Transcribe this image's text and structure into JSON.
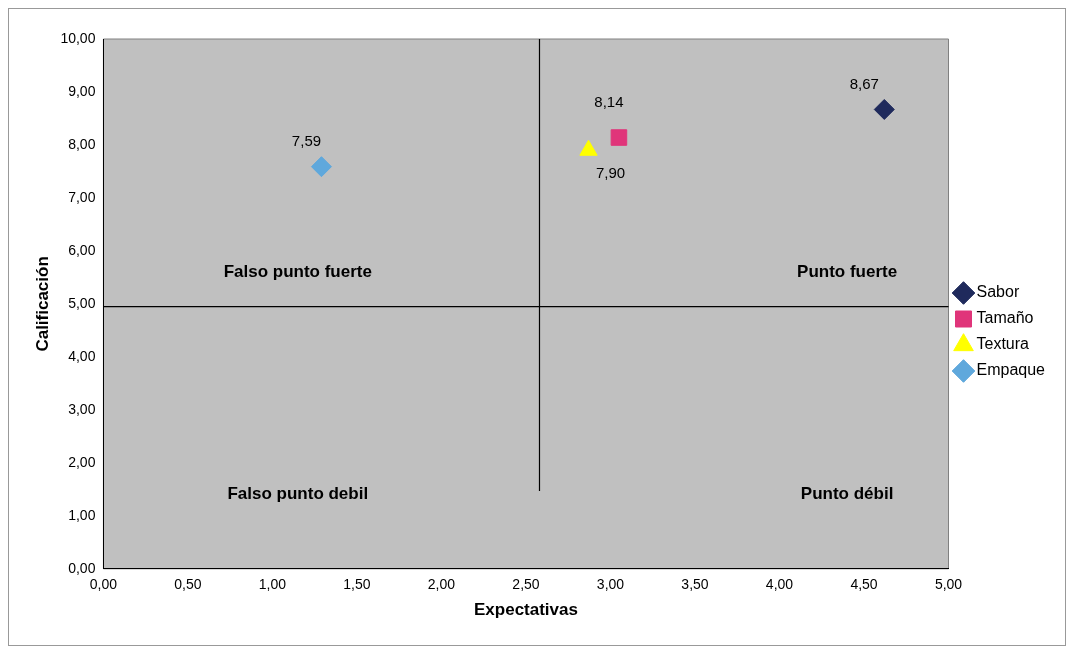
{
  "chart_data": {
    "type": "scatter",
    "xlabel": "Expectativas",
    "ylabel": "Calificación",
    "xlim": [
      0,
      5
    ],
    "xticks": [
      {
        "value": 0,
        "label": "0,00"
      },
      {
        "value": 0.5,
        "label": "0,50"
      },
      {
        "value": 1,
        "label": "1,00"
      },
      {
        "value": 1.5,
        "label": "1,50"
      },
      {
        "value": 2,
        "label": "2,00"
      },
      {
        "value": 2.5,
        "label": "2,50"
      },
      {
        "value": 3,
        "label": "3,00"
      },
      {
        "value": 3.5,
        "label": "3,50"
      },
      {
        "value": 4,
        "label": "4,00"
      },
      {
        "value": 4.5,
        "label": "4,50"
      },
      {
        "value": 5,
        "label": "5,00"
      }
    ],
    "ylim": [
      0,
      10
    ],
    "yticks": [
      {
        "value": 0,
        "label": "0,00"
      },
      {
        "value": 1,
        "label": "1,00"
      },
      {
        "value": 2,
        "label": "2,00"
      },
      {
        "value": 3,
        "label": "3,00"
      },
      {
        "value": 4,
        "label": "4,00"
      },
      {
        "value": 5,
        "label": "5,00"
      },
      {
        "value": 6,
        "label": "6,00"
      },
      {
        "value": 7,
        "label": "7,00"
      },
      {
        "value": 8,
        "label": "8,00"
      },
      {
        "value": 9,
        "label": "9,00"
      },
      {
        "value": 10,
        "label": "10,00"
      }
    ],
    "series": [
      {
        "name": "Sabor",
        "color": "#1f2a5c",
        "marker": "diamond",
        "x": [
          4.62
        ],
        "values": [
          8.67
        ],
        "value_labels": [
          "8,67"
        ]
      },
      {
        "name": "Tamaño",
        "color": "#e0357a",
        "marker": "square",
        "x": [
          3.05
        ],
        "values": [
          8.14
        ],
        "value_labels": [
          "8,14"
        ]
      },
      {
        "name": "Textura",
        "color": "#ffff00",
        "marker": "triangle",
        "x": [
          2.87
        ],
        "values": [
          7.9
        ],
        "value_labels": [
          "7,90"
        ]
      },
      {
        "name": "Empaque",
        "color": "#5fa8dc",
        "marker": "diamond",
        "x": [
          1.29
        ],
        "values": [
          7.59
        ],
        "value_labels": [
          "7,59"
        ]
      },
      {
        "type": "line",
        "color": "#000000",
        "marker": "none",
        "x": [
          2.58,
          2.58
        ],
        "values": [
          1.47,
          10
        ]
      }
    ],
    "ref_lines": [
      {
        "axis": "y",
        "value": 4.95,
        "color": "#000000"
      }
    ],
    "annotations": [
      "Falso punto fuerte",
      "Punto fuerte",
      "Falso punto debil",
      "Punto débil"
    ],
    "grid": false,
    "legend": "right"
  }
}
